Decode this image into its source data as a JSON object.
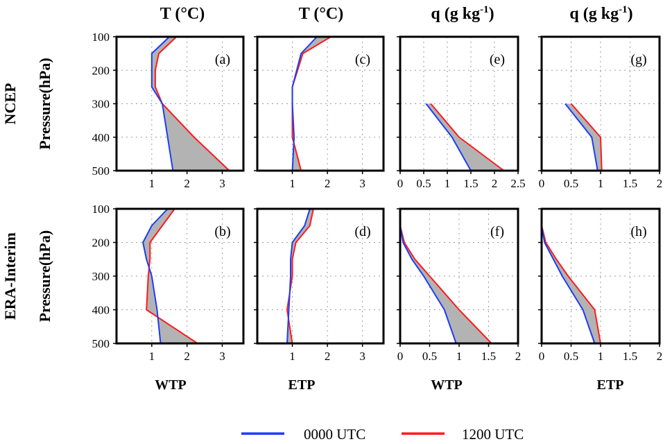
{
  "column_titles": [
    {
      "main": "T (°C)",
      "sup": ""
    },
    {
      "main": "T (°C)",
      "sup": ""
    },
    {
      "main": "q (g kg",
      "sup": "-1",
      "close": ")"
    },
    {
      "main": "q (g kg",
      "sup": "-1",
      "close": ")"
    }
  ],
  "row_labels": [
    "NCEP",
    "ERA-Interim"
  ],
  "y_axis_label": "Pressure(hPa)",
  "bottom_labels": [
    "WTP",
    "ETP",
    "WTP",
    "ETP"
  ],
  "legend": [
    {
      "label": "0000 UTC",
      "color": "#1a3cff"
    },
    {
      "label": "1200 UTC",
      "color": "#ff1a1a"
    }
  ],
  "colors": {
    "utc00": "#1a3cff",
    "utc12": "#ff1a1a",
    "fill": "#b3b3b3"
  },
  "chart_data": [
    {
      "type": "line",
      "panel": "(a)",
      "dataset": "NCEP",
      "region": "WTP",
      "variable": "T",
      "xlabel": "T (°C)",
      "ylabel": "Pressure(hPa)",
      "xlim": [
        0,
        3.6
      ],
      "xticks": [
        1,
        2,
        3
      ],
      "xtick_labels": [
        "1",
        "2",
        "3"
      ],
      "ylim": [
        100,
        500
      ],
      "yticks": [
        100,
        200,
        300,
        400,
        500
      ],
      "ytick_labels": [
        "100",
        "200",
        "300",
        "400",
        "500"
      ],
      "show_yticklabels": true,
      "series": [
        {
          "name": "0000 UTC",
          "points": [
            [
              1.5,
              100
            ],
            [
              1.0,
              150
            ],
            [
              1.0,
              200
            ],
            [
              1.0,
              250
            ],
            [
              1.3,
              300
            ],
            [
              1.45,
              400
            ],
            [
              1.6,
              500
            ]
          ]
        },
        {
          "name": "1200 UTC",
          "points": [
            [
              1.7,
              100
            ],
            [
              1.2,
              150
            ],
            [
              1.1,
              200
            ],
            [
              1.1,
              250
            ],
            [
              1.3,
              300
            ],
            [
              2.2,
              400
            ],
            [
              3.2,
              500
            ]
          ]
        }
      ]
    },
    {
      "type": "line",
      "panel": "(c)",
      "dataset": "NCEP",
      "region": "ETP",
      "variable": "T",
      "xlabel": "T (°C)",
      "ylabel": "Pressure(hPa)",
      "xlim": [
        0,
        3.6
      ],
      "xticks": [
        1,
        2,
        3
      ],
      "xtick_labels": [
        "1",
        "2",
        "3"
      ],
      "ylim": [
        100,
        500
      ],
      "yticks": [
        100,
        200,
        300,
        400,
        500
      ],
      "ytick_labels": [
        "100",
        "200",
        "300",
        "400",
        "500"
      ],
      "show_yticklabels": false,
      "series": [
        {
          "name": "0000 UTC",
          "points": [
            [
              1.7,
              100
            ],
            [
              1.25,
              150
            ],
            [
              1.0,
              250
            ],
            [
              1.0,
              300
            ],
            [
              1.05,
              400
            ],
            [
              1.0,
              500
            ]
          ]
        },
        {
          "name": "1200 UTC",
          "points": [
            [
              2.1,
              100
            ],
            [
              1.3,
              150
            ],
            [
              1.0,
              250
            ],
            [
              1.0,
              300
            ],
            [
              1.0,
              400
            ],
            [
              1.25,
              500
            ]
          ]
        }
      ]
    },
    {
      "type": "line",
      "panel": "(e)",
      "dataset": "NCEP",
      "region": "WTP",
      "variable": "q",
      "xlabel": "q (g kg-1)",
      "ylabel": "Pressure(hPa)",
      "xlim": [
        0,
        2.5
      ],
      "xticks": [
        0,
        0.5,
        1,
        1.5,
        2,
        2.5
      ],
      "xtick_labels": [
        "0",
        "0.5",
        "1",
        "1.5",
        "2",
        "2.5"
      ],
      "ylim": [
        100,
        500
      ],
      "yticks": [
        100,
        200,
        300,
        400,
        500
      ],
      "ytick_labels": [
        "100",
        "200",
        "300",
        "400",
        "500"
      ],
      "show_yticklabels": false,
      "series": [
        {
          "name": "0000 UTC",
          "points": [
            [
              0.55,
              300
            ],
            [
              1.1,
              400
            ],
            [
              1.5,
              500
            ]
          ]
        },
        {
          "name": "1200 UTC",
          "points": [
            [
              0.65,
              300
            ],
            [
              1.25,
              400
            ],
            [
              2.2,
              500
            ]
          ]
        }
      ]
    },
    {
      "type": "line",
      "panel": "(g)",
      "dataset": "NCEP",
      "region": "ETP",
      "variable": "q",
      "xlabel": "q (g kg-1)",
      "ylabel": "Pressure(hPa)",
      "xlim": [
        0,
        2
      ],
      "xticks": [
        0,
        0.5,
        1,
        1.5,
        2
      ],
      "xtick_labels": [
        "0",
        "0.5",
        "1",
        "1.5",
        "2"
      ],
      "ylim": [
        100,
        500
      ],
      "yticks": [
        100,
        200,
        300,
        400,
        500
      ],
      "ytick_labels": [
        "100",
        "200",
        "300",
        "400",
        "500"
      ],
      "show_yticklabels": false,
      "series": [
        {
          "name": "0000 UTC",
          "points": [
            [
              0.4,
              300
            ],
            [
              0.85,
              400
            ],
            [
              0.95,
              500
            ]
          ]
        },
        {
          "name": "1200 UTC",
          "points": [
            [
              0.5,
              300
            ],
            [
              1.0,
              400
            ],
            [
              1.02,
              500
            ]
          ]
        }
      ]
    },
    {
      "type": "line",
      "panel": "(b)",
      "dataset": "ERA-Interim",
      "region": "WTP",
      "variable": "T",
      "xlabel": "T (°C)",
      "ylabel": "Pressure(hPa)",
      "xlim": [
        0,
        3.6
      ],
      "xticks": [
        1,
        2,
        3
      ],
      "xtick_labels": [
        "1",
        "2",
        "3"
      ],
      "ylim": [
        100,
        500
      ],
      "yticks": [
        100,
        200,
        300,
        400,
        500
      ],
      "ytick_labels": [
        "100",
        "200",
        "300",
        "400",
        "500"
      ],
      "show_yticklabels": true,
      "series": [
        {
          "name": "0000 UTC",
          "points": [
            [
              1.45,
              100
            ],
            [
              1.0,
              150
            ],
            [
              0.75,
              200
            ],
            [
              0.85,
              250
            ],
            [
              1.0,
              300
            ],
            [
              1.15,
              400
            ],
            [
              1.25,
              500
            ]
          ]
        },
        {
          "name": "1200 UTC",
          "points": [
            [
              1.65,
              100
            ],
            [
              1.3,
              150
            ],
            [
              0.95,
              200
            ],
            [
              0.95,
              250
            ],
            [
              0.9,
              300
            ],
            [
              0.85,
              400
            ],
            [
              2.3,
              500
            ]
          ]
        }
      ]
    },
    {
      "type": "line",
      "panel": "(d)",
      "dataset": "ERA-Interim",
      "region": "ETP",
      "variable": "T",
      "xlabel": "T (°C)",
      "ylabel": "Pressure(hPa)",
      "xlim": [
        0,
        3.6
      ],
      "xticks": [
        1,
        2,
        3
      ],
      "xtick_labels": [
        "1",
        "2",
        "3"
      ],
      "ylim": [
        100,
        500
      ],
      "yticks": [
        100,
        200,
        300,
        400,
        500
      ],
      "ytick_labels": [
        "100",
        "200",
        "300",
        "400",
        "500"
      ],
      "show_yticklabels": false,
      "series": [
        {
          "name": "0000 UTC",
          "points": [
            [
              1.5,
              100
            ],
            [
              1.35,
              150
            ],
            [
              1.0,
              200
            ],
            [
              0.95,
              250
            ],
            [
              0.95,
              300
            ],
            [
              0.9,
              400
            ],
            [
              0.85,
              500
            ]
          ]
        },
        {
          "name": "1200 UTC",
          "points": [
            [
              1.6,
              100
            ],
            [
              1.5,
              150
            ],
            [
              1.1,
              200
            ],
            [
              1.0,
              250
            ],
            [
              1.0,
              300
            ],
            [
              0.85,
              400
            ],
            [
              1.0,
              500
            ]
          ]
        }
      ]
    },
    {
      "type": "line",
      "panel": "(f)",
      "dataset": "ERA-Interim",
      "region": "WTP",
      "variable": "q",
      "xlabel": "q (g kg-1)",
      "ylabel": "Pressure(hPa)",
      "xlim": [
        0,
        2
      ],
      "xticks": [
        0,
        0.5,
        1,
        1.5,
        2
      ],
      "xtick_labels": [
        "0",
        "0.5",
        "1",
        "1.5",
        "2"
      ],
      "ylim": [
        100,
        500
      ],
      "yticks": [
        100,
        200,
        300,
        400,
        500
      ],
      "ytick_labels": [
        "100",
        "200",
        "300",
        "400",
        "500"
      ],
      "show_yticklabels": false,
      "series": [
        {
          "name": "0000 UTC",
          "points": [
            [
              0.0,
              150
            ],
            [
              0.05,
              200
            ],
            [
              0.2,
              250
            ],
            [
              0.4,
              300
            ],
            [
              0.75,
              400
            ],
            [
              0.95,
              500
            ]
          ]
        },
        {
          "name": "1200 UTC",
          "points": [
            [
              0.0,
              150
            ],
            [
              0.07,
              200
            ],
            [
              0.25,
              250
            ],
            [
              0.5,
              300
            ],
            [
              1.0,
              400
            ],
            [
              1.55,
              500
            ]
          ]
        }
      ]
    },
    {
      "type": "line",
      "panel": "(h)",
      "dataset": "ERA-Interim",
      "region": "ETP",
      "variable": "q",
      "xlabel": "q (g kg-1)",
      "ylabel": "Pressure(hPa)",
      "xlim": [
        0,
        2
      ],
      "xticks": [
        0,
        0.5,
        1,
        1.5,
        2
      ],
      "xtick_labels": [
        "0",
        "0.5",
        "1",
        "1.5",
        "2"
      ],
      "ylim": [
        100,
        500
      ],
      "yticks": [
        100,
        200,
        300,
        400,
        500
      ],
      "ytick_labels": [
        "100",
        "200",
        "300",
        "400",
        "500"
      ],
      "show_yticklabels": false,
      "series": [
        {
          "name": "0000 UTC",
          "points": [
            [
              0.0,
              150
            ],
            [
              0.05,
              200
            ],
            [
              0.2,
              250
            ],
            [
              0.35,
              300
            ],
            [
              0.7,
              400
            ],
            [
              0.9,
              500
            ]
          ]
        },
        {
          "name": "1200 UTC",
          "points": [
            [
              0.0,
              150
            ],
            [
              0.07,
              200
            ],
            [
              0.25,
              250
            ],
            [
              0.45,
              300
            ],
            [
              0.9,
              400
            ],
            [
              1.0,
              500
            ]
          ]
        }
      ]
    }
  ]
}
